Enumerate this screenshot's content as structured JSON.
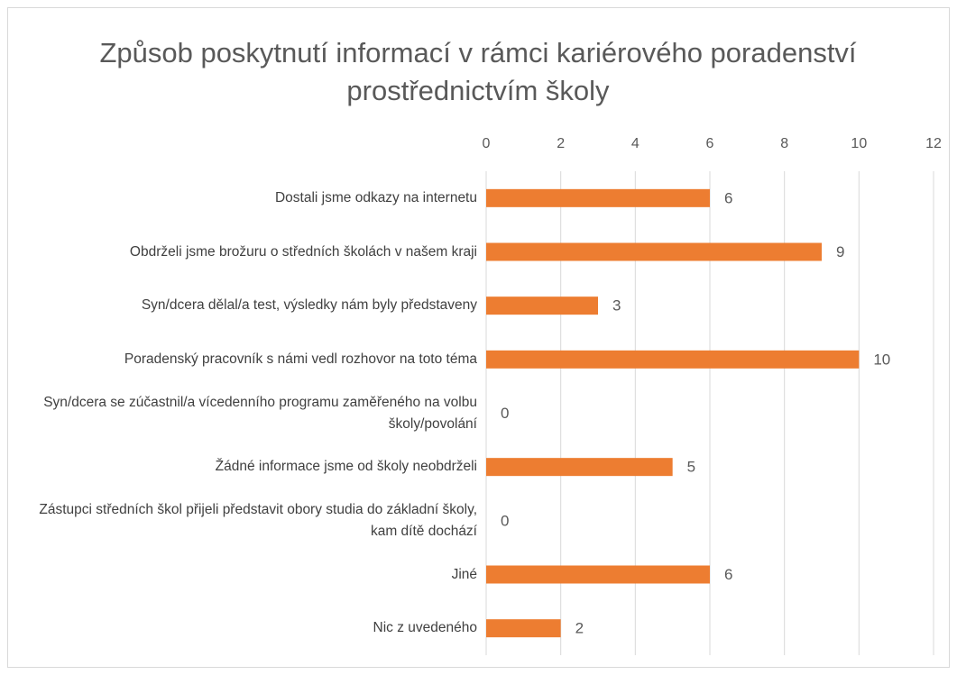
{
  "chart_data": {
    "type": "bar",
    "orientation": "horizontal",
    "title": "Způsob poskytnutí informací v rámci kariérového poradenství prostřednictvím školy",
    "categories": [
      "Dostali jsme odkazy na internetu",
      "Obdrželi jsme brožuru o středních školách v našem kraji",
      "Syn/dcera dělal/a test, výsledky nám byly představeny",
      "Poradenský pracovník s námi vedl rozhovor na toto téma",
      "Syn/dcera se zúčastnil/a vícedenního programu zaměřeného na volbu školy/povolání",
      "Žádné informace jsme od školy neobdrželi",
      "Zástupci středních škol přijeli představit obory studia do základní školy, kam dítě dochází",
      "Jiné",
      "Nic z uvedeného"
    ],
    "values": [
      6,
      9,
      3,
      10,
      0,
      5,
      0,
      6,
      2
    ],
    "color": "#ed7d31",
    "xlim": [
      0,
      12
    ],
    "xticks": [
      0,
      2,
      4,
      6,
      8,
      10,
      12
    ],
    "grid": true
  }
}
